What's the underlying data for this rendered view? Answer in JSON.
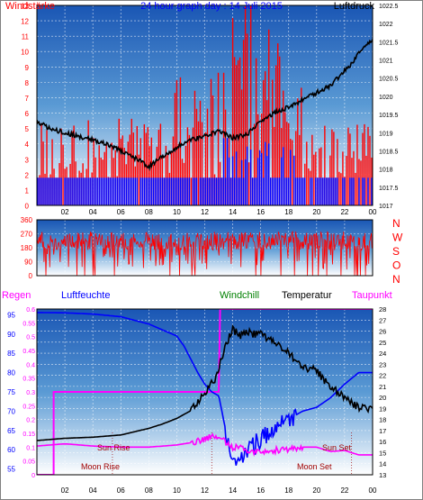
{
  "chart_data": [
    {
      "type": "bar",
      "title": "24 hour graph day : 14 Juli 2015",
      "left_axis_title": "Windstärke",
      "right_axis_title": "Luftdruck",
      "left_ylim": [
        0,
        13
      ],
      "left_ticks": [
        "0",
        "1",
        "2",
        "3",
        "4",
        "5",
        "6",
        "7",
        "8",
        "9",
        "10",
        "11",
        "12",
        "13"
      ],
      "right_ylim": [
        1017,
        1022.5
      ],
      "right_ticks": [
        "1017",
        "1017.5",
        "1018",
        "1018.5",
        "1019",
        "1019.5",
        "1020",
        "1020.5",
        "1021",
        "1021.5",
        "1022",
        "1022.5"
      ],
      "x_ticks": [
        "02",
        "04",
        "06",
        "08",
        "10",
        "12",
        "14",
        "16",
        "18",
        "20",
        "22",
        "00"
      ],
      "pressure_curve": {
        "x": [
          0,
          1,
          2,
          3,
          4,
          5,
          6,
          7,
          7.5,
          8,
          8.5,
          9,
          10,
          11,
          12,
          13,
          14,
          15,
          16,
          17,
          18,
          19,
          20,
          21,
          22,
          22.5,
          23,
          23.5,
          24
        ],
        "y": [
          1019.3,
          1019.1,
          1019.0,
          1018.9,
          1018.8,
          1018.7,
          1018.5,
          1018.3,
          1018.2,
          1018.05,
          1018.2,
          1018.35,
          1018.6,
          1018.8,
          1018.9,
          1019.05,
          1018.85,
          1018.95,
          1019.3,
          1019.55,
          1019.7,
          1019.9,
          1020.1,
          1020.3,
          1020.7,
          1020.9,
          1021.2,
          1021.4,
          1021.55
        ]
      }
    },
    {
      "type": "line",
      "ylim": [
        0,
        360
      ],
      "left_ticks": [
        "0",
        "90",
        "180",
        "270",
        "360"
      ],
      "right_labels": [
        "N",
        "W",
        "S",
        "O",
        "N"
      ]
    },
    {
      "type": "line",
      "legend": [
        "Regen",
        "Luftfeuchte",
        "Windchill",
        "Temperatur",
        "Taupunkt"
      ],
      "regen_ticks": [
        "0",
        "0.05",
        "0.1",
        "0.15",
        "0.2",
        "0.25",
        "0.3",
        "0.35",
        "0.4",
        "0.45",
        "0.5",
        "0.55",
        "0.6"
      ],
      "luftfeuchte_ticks": [
        "55",
        "60",
        "65",
        "70",
        "75",
        "80",
        "85",
        "90",
        "95"
      ],
      "temp_ticks": [
        "13",
        "14",
        "15",
        "16",
        "17",
        "18",
        "19",
        "20",
        "21",
        "22",
        "23",
        "24",
        "25",
        "26",
        "27",
        "28"
      ],
      "x_ticks": [
        "02",
        "04",
        "06",
        "08",
        "10",
        "12",
        "14",
        "16",
        "18",
        "20",
        "22",
        "00"
      ],
      "annotations": [
        "Sun Rise",
        "Sun Set",
        "Moon Rise",
        "Moon Set"
      ],
      "temperatur": {
        "x": [
          0,
          2,
          4,
          6,
          8,
          9,
          10,
          11,
          11.5,
          12,
          12.5,
          12.8,
          13.2,
          13.6,
          14,
          14.5,
          15,
          15.5,
          16,
          17,
          18,
          19,
          20,
          21,
          22,
          23,
          24
        ],
        "y": [
          16.1,
          16.3,
          16.4,
          16.6,
          17.2,
          17.6,
          18.1,
          18.8,
          19.5,
          20.4,
          21.3,
          21.8,
          23.5,
          25.0,
          26.2,
          25.6,
          26.0,
          25.7,
          25.8,
          24.9,
          24.0,
          22.8,
          22.4,
          20.9,
          20.0,
          19.1,
          19.0
        ]
      },
      "taupunkt": {
        "x": [
          0,
          2,
          4,
          6,
          8,
          10,
          11,
          12,
          12.5,
          13,
          13.5,
          14,
          14.5,
          15,
          16,
          17,
          18,
          19,
          20,
          21,
          22,
          23,
          24
        ],
        "y": [
          15.6,
          15.8,
          15.6,
          15.5,
          15.5,
          15.7,
          15.9,
          16.2,
          16.5,
          16.3,
          16.0,
          15.5,
          15.4,
          15.1,
          15.2,
          15.2,
          15.3,
          15.5,
          15.5,
          15.1,
          15.2,
          14.8,
          14.8
        ]
      },
      "luftfeuchte": {
        "x": [
          0,
          2,
          4,
          6,
          8,
          10,
          10.5,
          11,
          11.5,
          12,
          12.5,
          13,
          13.5,
          14,
          14.5,
          15,
          15.5,
          16,
          17,
          18,
          19,
          20,
          21,
          22,
          23,
          24
        ],
        "y": [
          95.6,
          95.5,
          95.2,
          94.5,
          92.6,
          89.5,
          87,
          83.5,
          80,
          77,
          75,
          74,
          65,
          57,
          58,
          60,
          61,
          63,
          65,
          68,
          70,
          71,
          73.5,
          77,
          80,
          80
        ]
      },
      "regen": {
        "x": [
          0,
          1.2,
          1.2,
          13.0,
          13.0,
          13.1,
          13.1,
          24
        ],
        "y": [
          0,
          0,
          0.3,
          0.3,
          0.3,
          0.6,
          0.6,
          0.6
        ]
      }
    }
  ]
}
